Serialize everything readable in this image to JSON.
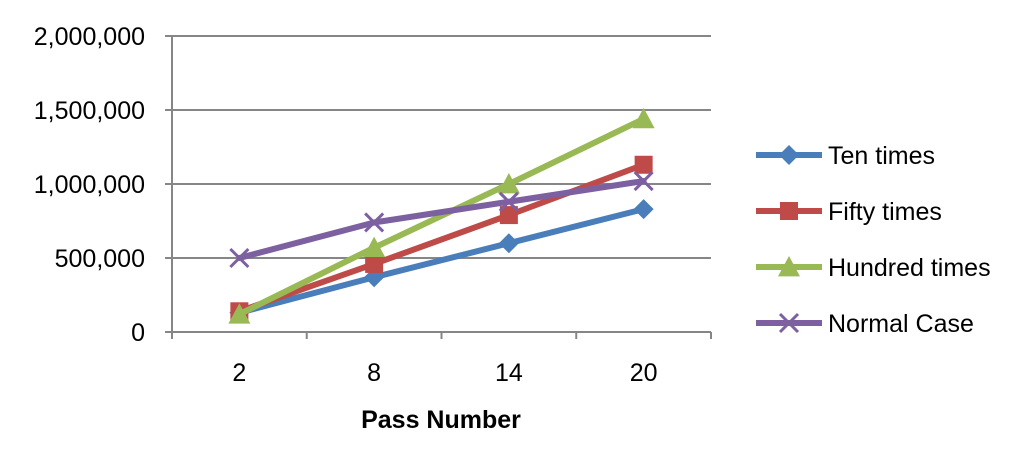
{
  "chart_data": {
    "type": "line",
    "title": "",
    "xlabel": "Pass Number",
    "ylabel": "",
    "categories": [
      "2",
      "8",
      "14",
      "20"
    ],
    "ylim": [
      0,
      2000000
    ],
    "yticks": [
      0,
      500000,
      1000000,
      1500000,
      2000000
    ],
    "ytick_labels": [
      "0",
      "500,000",
      "1,000,000",
      "1,500,000",
      "2,000,000"
    ],
    "grid": true,
    "legend_position": "right",
    "series": [
      {
        "name": "Ten times",
        "values": [
          130000,
          370000,
          600000,
          830000
        ],
        "color": "#4a7ebb",
        "marker": "diamond"
      },
      {
        "name": "Fifty times",
        "values": [
          140000,
          460000,
          790000,
          1130000
        ],
        "color": "#be4b48",
        "marker": "square"
      },
      {
        "name": "Hundred times",
        "values": [
          120000,
          570000,
          1000000,
          1440000
        ],
        "color": "#98b954",
        "marker": "triangle"
      },
      {
        "name": "Normal Case",
        "values": [
          500000,
          740000,
          880000,
          1020000
        ],
        "color": "#7d60a0",
        "marker": "x"
      }
    ]
  }
}
